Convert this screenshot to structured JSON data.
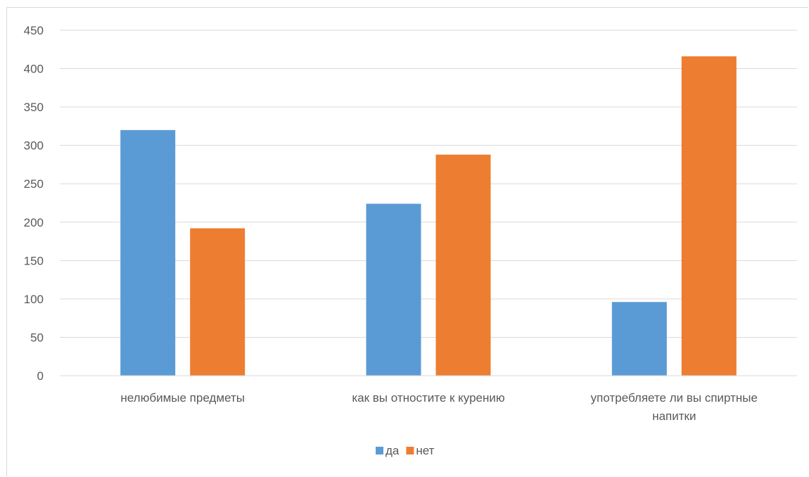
{
  "chart_data": {
    "type": "bar",
    "categories": [
      [
        "нелюбимые предметы"
      ],
      [
        "как вы отностите к курению"
      ],
      [
        "употребляете ли вы спиртные",
        "напитки"
      ]
    ],
    "series": [
      {
        "name": "да",
        "color": "#5b9bd5",
        "values": [
          320,
          224,
          96
        ]
      },
      {
        "name": "нет",
        "color": "#ed7d31",
        "values": [
          192,
          288,
          416
        ]
      }
    ],
    "ylim": [
      0,
      450
    ],
    "yticks": [
      0,
      50,
      100,
      150,
      200,
      250,
      300,
      350,
      400,
      450
    ],
    "grid": true,
    "legend_position": "bottom"
  }
}
